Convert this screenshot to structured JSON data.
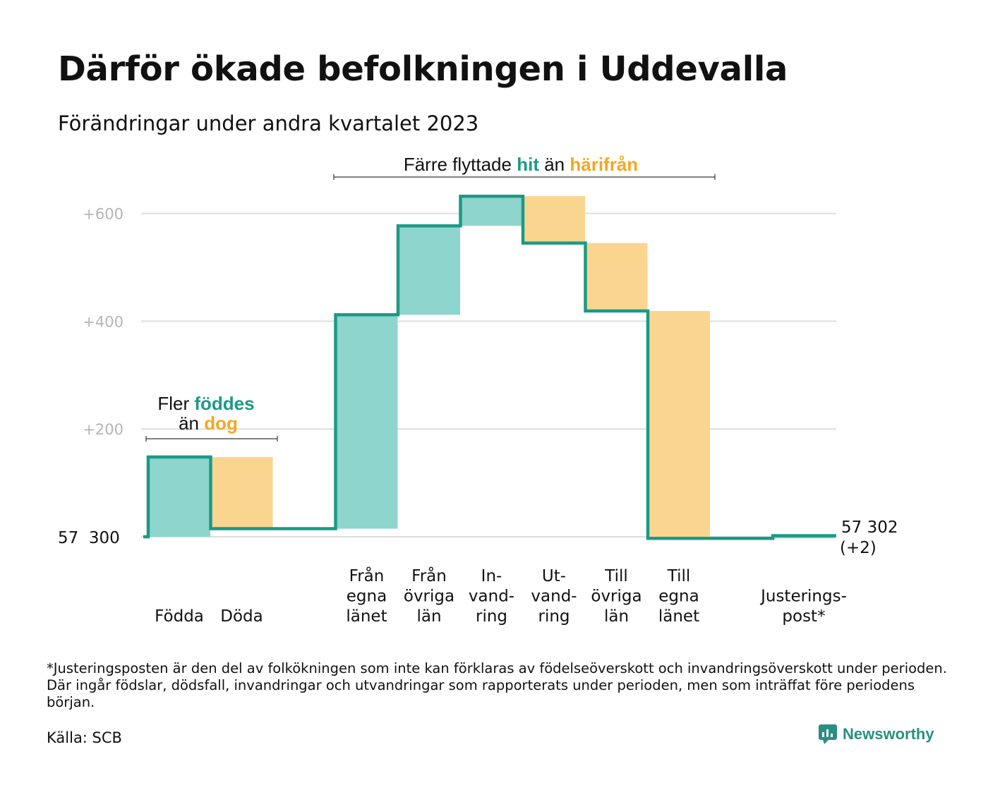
{
  "title": "Därför ökade befolkningen i Uddevalla",
  "subtitle": "Förändringar under andra kvartalet 2023",
  "colors": {
    "line": "#1a9a86",
    "positive": "#8ed5cd",
    "negative": "#fad58f",
    "annotation_teal": "#1a9a86",
    "annotation_orange": "#f5a623",
    "grid": "#dedede",
    "tick": "#b5b5b5"
  },
  "annotations": {
    "births": {
      "line1_pre": "Fler ",
      "line1_hl": "föddes",
      "line2_pre": "än ",
      "line2_hl": "dog"
    },
    "migration": {
      "pre": "Färre flyttade ",
      "hl1": "hit",
      "mid": " än ",
      "hl2": "härifrån"
    }
  },
  "chart_data": {
    "type": "waterfall",
    "base_value": "57  300",
    "end_value": "57 302",
    "end_change": "(+2)",
    "yticks": [
      {
        "value": 200,
        "label": "+200"
      },
      {
        "value": 400,
        "label": "+400"
      },
      {
        "value": 600,
        "label": "+600"
      }
    ],
    "categories": [
      {
        "label": [
          "Födda"
        ],
        "change": 148,
        "kind": "positive"
      },
      {
        "label": [
          "Döda"
        ],
        "change": -133,
        "kind": "negative"
      },
      {
        "label": [],
        "change": 0,
        "kind": "none"
      },
      {
        "label": [
          "Från",
          "egna",
          "länet"
        ],
        "change": 397,
        "kind": "positive"
      },
      {
        "label": [
          "Från",
          "övriga",
          "län"
        ],
        "change": 165,
        "kind": "positive"
      },
      {
        "label": [
          "In-",
          "vand-",
          "ring"
        ],
        "change": 55,
        "kind": "positive"
      },
      {
        "label": [
          "Ut-",
          "vand-",
          "ring"
        ],
        "change": -87,
        "kind": "negative"
      },
      {
        "label": [
          "Till",
          "övriga",
          "län"
        ],
        "change": -126,
        "kind": "negative"
      },
      {
        "label": [
          "Till",
          "egna",
          "länet"
        ],
        "change": -422,
        "kind": "negative"
      },
      {
        "label": [],
        "change": 0,
        "kind": "none"
      },
      {
        "label": [
          "Justerings-",
          "post*"
        ],
        "change": 5,
        "kind": "positive"
      }
    ]
  },
  "footnote": "*Justeringsposten är den del av folkökningen som inte kan förklaras av födelseöverskott och invandringsöverskott under perioden. Där ingår födslar, dödsfall, invandringar och utvandringar som rapporterats under perioden, men som inträffat före periodens början.",
  "source": "Källa: SCB",
  "brand": {
    "name": "Newsworthy",
    "icon": "newsworthy-logo-icon"
  }
}
